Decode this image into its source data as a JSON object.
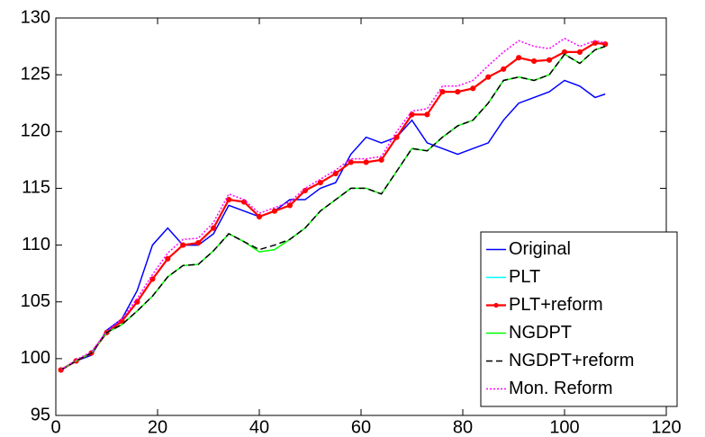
{
  "chart_data": {
    "type": "line",
    "x": [
      1,
      4,
      7,
      10,
      13,
      16,
      19,
      22,
      25,
      28,
      31,
      34,
      37,
      40,
      43,
      46,
      49,
      52,
      55,
      58,
      61,
      64,
      67,
      70,
      73,
      76,
      79,
      82,
      85,
      88,
      91,
      94,
      97,
      100,
      103,
      106,
      108
    ],
    "series": [
      {
        "name": "Original",
        "color": "#0000ff",
        "line_style": "solid",
        "values": [
          99,
          99.8,
          100.3,
          102.5,
          103.5,
          106,
          110,
          111.5,
          110,
          110,
          111,
          113.5,
          113,
          112.5,
          113,
          114,
          114,
          115,
          115.5,
          118,
          119.5,
          119,
          119.5,
          121,
          119,
          118.5,
          118,
          118.5,
          119,
          121,
          122.5,
          123,
          123.5,
          124.5,
          124,
          123,
          123.3
        ]
      },
      {
        "name": "PLT",
        "color": "#00ffff",
        "line_style": "solid",
        "values": [
          99,
          99.8,
          100.5,
          102.3,
          103.3,
          105,
          107,
          108.8,
          110,
          110.2,
          111.5,
          114,
          113.8,
          112.5,
          113,
          113.5,
          114.8,
          115.5,
          116.3,
          117.3,
          117.3,
          117.5,
          119.5,
          121.5,
          121.5,
          123.5,
          123.5,
          123.8,
          124.8,
          125.5,
          126.5,
          126.2,
          126.3,
          127,
          127,
          127.8,
          127.7
        ]
      },
      {
        "name": "PLT+reform",
        "color": "#ff0000",
        "line_style": "solid",
        "marker": "o",
        "values": [
          99,
          99.8,
          100.5,
          102.3,
          103.3,
          105,
          107,
          108.8,
          110,
          110.2,
          111.5,
          114,
          113.8,
          112.5,
          113,
          113.5,
          114.8,
          115.5,
          116.3,
          117.3,
          117.3,
          117.5,
          119.5,
          121.5,
          121.5,
          123.5,
          123.5,
          123.8,
          124.8,
          125.5,
          126.5,
          126.2,
          126.3,
          127,
          127,
          127.8,
          127.7
        ]
      },
      {
        "name": "NGDPT",
        "color": "#00ff00",
        "line_style": "solid",
        "values": [
          99,
          99.8,
          100.5,
          102.3,
          103,
          104.2,
          105.5,
          107.2,
          108.2,
          108.3,
          109.5,
          111,
          110.3,
          109.4,
          109.6,
          110.5,
          111.5,
          113,
          114,
          115,
          115,
          114.5,
          116.5,
          118.5,
          118.3,
          119.5,
          120.5,
          121,
          122.5,
          124.5,
          124.8,
          124.5,
          125,
          126.8,
          126,
          127.2,
          127.5
        ]
      },
      {
        "name": "NGDPT+reform",
        "color": "#000000",
        "line_style": "dashed",
        "values": [
          99,
          99.8,
          100.5,
          102.3,
          103,
          104.2,
          105.5,
          107.2,
          108.2,
          108.3,
          109.5,
          111,
          110.3,
          109.6,
          110,
          110.5,
          111.5,
          113,
          114,
          115,
          115,
          114.5,
          116.5,
          118.5,
          118.3,
          119.5,
          120.5,
          121,
          122.5,
          124.5,
          124.8,
          124.5,
          125,
          126.8,
          126,
          127.2,
          127.5
        ]
      },
      {
        "name": "Mon. Reform",
        "color": "#ff00ff",
        "line_style": "dotted",
        "values": [
          99,
          99.9,
          100.6,
          102.4,
          103.5,
          105.3,
          107.4,
          109.3,
          110.5,
          110.6,
          112,
          114.5,
          114,
          112.8,
          113.3,
          113.8,
          115,
          115.8,
          116.6,
          117.6,
          117.6,
          117.8,
          120,
          121.8,
          122,
          124,
          124,
          124.5,
          125.8,
          127,
          128,
          127.5,
          127.3,
          128.2,
          127.5,
          128,
          127.8
        ]
      }
    ],
    "xlim": [
      0,
      120
    ],
    "xticks": [
      0,
      20,
      40,
      60,
      80,
      100,
      120
    ],
    "ylim": [
      95,
      130
    ],
    "yticks": [
      95,
      100,
      105,
      110,
      115,
      120,
      125,
      130
    ],
    "grid": false,
    "legend": "southeast"
  }
}
